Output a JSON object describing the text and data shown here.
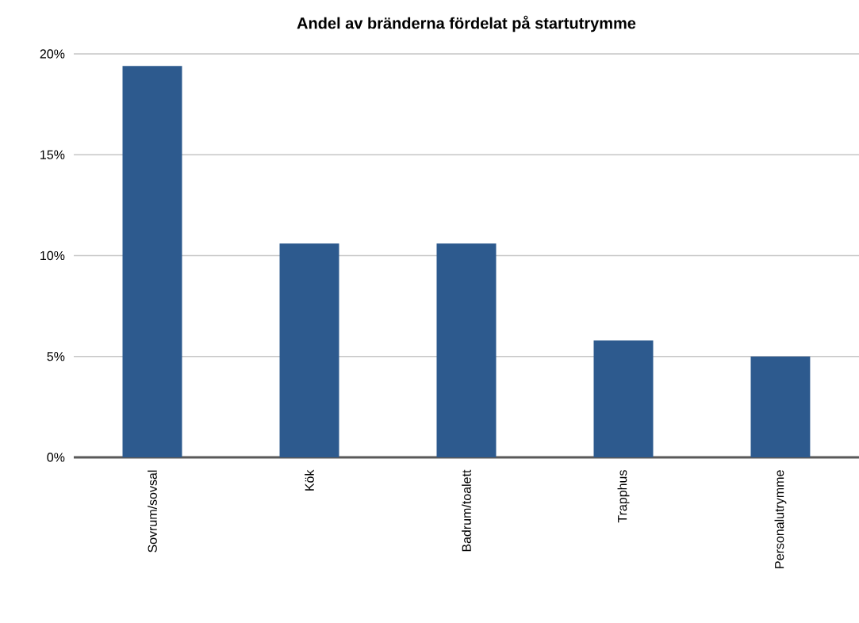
{
  "chart_data": {
    "type": "bar",
    "title": "Andel av bränderna fördelat på startutrymme",
    "categories": [
      "Sovrum/sovsal",
      "Kök",
      "Badrum/toalett",
      "Trapphus",
      "Personalutrymme"
    ],
    "values": [
      19.4,
      10.6,
      10.6,
      5.8,
      5.0
    ],
    "color": "#2d5a8e",
    "ylim": [
      0,
      20
    ],
    "yticks": [
      {
        "value": 0,
        "label": "0%"
      },
      {
        "value": 5,
        "label": "5%"
      },
      {
        "value": 10,
        "label": "10%"
      },
      {
        "value": 15,
        "label": "15%"
      },
      {
        "value": 20,
        "label": "20%"
      }
    ],
    "grid": "y"
  }
}
